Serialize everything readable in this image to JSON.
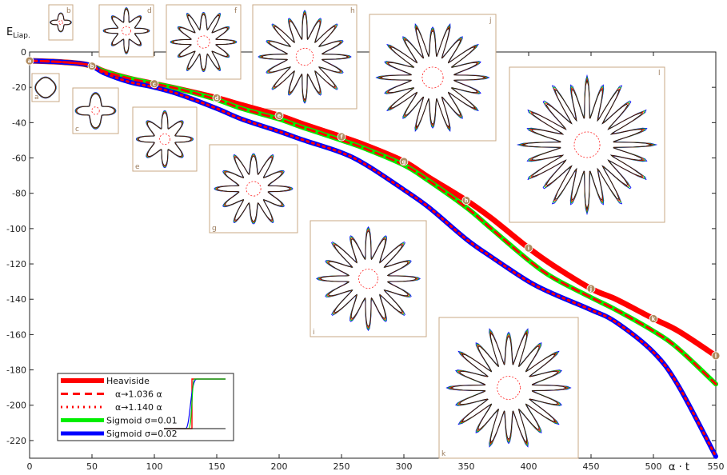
{
  "chart_data": {
    "type": "line",
    "title": "",
    "ylabel": "E",
    "ylabel_sub": "Liap.",
    "xlabel": "α · t",
    "xlim": [
      0,
      550
    ],
    "ylim": [
      -230,
      0
    ],
    "xticks": [
      0,
      50,
      100,
      150,
      200,
      250,
      300,
      350,
      400,
      450,
      500,
      550
    ],
    "yticks": [
      0,
      -20,
      -40,
      -60,
      -80,
      -100,
      -120,
      -140,
      -160,
      -180,
      -200,
      -220
    ],
    "grid": false,
    "legend_position": "bottom-left",
    "series": [
      {
        "name": "Heaviside",
        "color": "#ff0000",
        "style": "solid",
        "x": [
          0,
          20,
          40,
          50,
          60,
          80,
          100,
          120,
          150,
          170,
          200,
          220,
          250,
          270,
          300,
          320,
          350,
          370,
          400,
          420,
          450,
          470,
          500,
          520,
          550
        ],
        "y": [
          -5,
          -5.5,
          -6.5,
          -8,
          -11,
          -15,
          -18,
          -21,
          -26,
          -30,
          -36,
          -41,
          -48,
          -53,
          -62,
          -71,
          -84,
          -94,
          -111,
          -121,
          -134,
          -140,
          -151,
          -158,
          -172
        ]
      },
      {
        "name": "α→1.036 α",
        "color": "#ff0000",
        "style": "dashed",
        "x": [
          0,
          20,
          40,
          50,
          60,
          80,
          100,
          120,
          150,
          170,
          200,
          220,
          250,
          270,
          300,
          320,
          350,
          370,
          400,
          420,
          450,
          470,
          500,
          520,
          550
        ],
        "y": [
          -5,
          -5.5,
          -6.5,
          -8,
          -11,
          -15,
          -18,
          -21,
          -27,
          -32,
          -38,
          -43,
          -50,
          -55,
          -64,
          -73,
          -88,
          -100,
          -118,
          -128,
          -139,
          -146,
          -158,
          -168,
          -188
        ]
      },
      {
        "name": "α→1.140 α",
        "color": "#ff0000",
        "style": "dotted",
        "x": [
          0,
          20,
          40,
          50,
          60,
          80,
          100,
          120,
          150,
          170,
          200,
          220,
          250,
          270,
          300,
          320,
          350,
          370,
          400,
          420,
          450,
          470,
          500,
          520,
          550
        ],
        "y": [
          -5,
          -5.5,
          -6.5,
          -8,
          -12,
          -17,
          -20,
          -24,
          -32,
          -38,
          -45,
          -50,
          -57,
          -64,
          -78,
          -88,
          -106,
          -116,
          -130,
          -137,
          -146,
          -153,
          -170,
          -189,
          -229
        ]
      },
      {
        "name": "Sigmoid σ=0.01",
        "color": "#00ee00",
        "style": "solid",
        "x": [
          0,
          20,
          40,
          50,
          60,
          80,
          100,
          120,
          150,
          170,
          200,
          220,
          250,
          270,
          300,
          320,
          350,
          370,
          400,
          420,
          450,
          470,
          500,
          520,
          550
        ],
        "y": [
          -5,
          -5.5,
          -6.5,
          -8,
          -11,
          -15,
          -18,
          -21,
          -27,
          -32,
          -38,
          -43,
          -50,
          -55,
          -64,
          -73,
          -88,
          -100,
          -118,
          -128,
          -139,
          -146,
          -158,
          -168,
          -188
        ]
      },
      {
        "name": "Sigmoid σ=0.02",
        "color": "#0000ff",
        "style": "solid",
        "x": [
          0,
          20,
          40,
          50,
          60,
          80,
          100,
          120,
          150,
          170,
          200,
          220,
          250,
          270,
          300,
          320,
          350,
          370,
          400,
          420,
          450,
          470,
          500,
          520,
          550
        ],
        "y": [
          -5,
          -5.5,
          -6.5,
          -8,
          -12,
          -17,
          -20,
          -24,
          -32,
          -38,
          -45,
          -50,
          -57,
          -64,
          -78,
          -88,
          -106,
          -116,
          -130,
          -137,
          -146,
          -153,
          -170,
          -189,
          -229
        ]
      }
    ],
    "markers": [
      {
        "label": "a",
        "x": 0,
        "y": -5
      },
      {
        "label": "b",
        "x": 50,
        "y": -8
      },
      {
        "label": "c",
        "x": 100,
        "y": -18
      },
      {
        "label": "d",
        "x": 150,
        "y": -26
      },
      {
        "label": "e",
        "x": 200,
        "y": -36
      },
      {
        "label": "f",
        "x": 250,
        "y": -48
      },
      {
        "label": "g",
        "x": 300,
        "y": -62
      },
      {
        "label": "h",
        "x": 350,
        "y": -84
      },
      {
        "label": "i",
        "x": 400,
        "y": -111
      },
      {
        "label": "j",
        "x": 450,
        "y": -134
      },
      {
        "label": "k",
        "x": 500,
        "y": -151
      },
      {
        "label": "l",
        "x": 550,
        "y": -172
      }
    ],
    "insets": [
      "a",
      "b",
      "c",
      "d",
      "e",
      "f",
      "g",
      "h",
      "i",
      "j",
      "k",
      "l"
    ]
  }
}
